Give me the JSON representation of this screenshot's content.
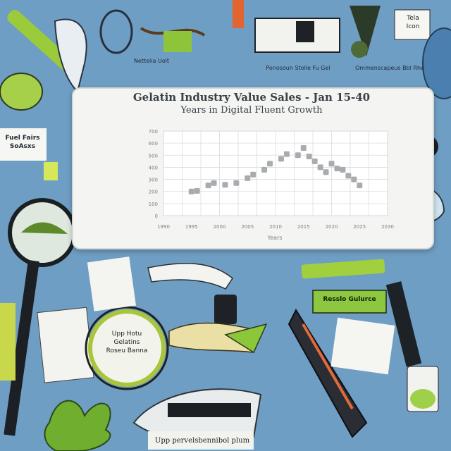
{
  "chart_data": {
    "type": "scatter",
    "title": "Gelatin Industry Value Sales - Jan 15-40",
    "subtitle": "Years in Digital Fluent Growth",
    "xlabel": "Years",
    "ylabel": "",
    "x_ticks": [
      "1990",
      "1995",
      "2000",
      "2005",
      "2010",
      "2015",
      "2020",
      "2025",
      "2030"
    ],
    "y_ticks": [
      0,
      100,
      200,
      300,
      400,
      500,
      600,
      700
    ],
    "xlim": [
      1990,
      2030
    ],
    "ylim": [
      0,
      700
    ],
    "points": [
      {
        "x": 1995,
        "y": 200
      },
      {
        "x": 1996,
        "y": 205
      },
      {
        "x": 1998,
        "y": 250
      },
      {
        "x": 1999,
        "y": 270
      },
      {
        "x": 2001,
        "y": 255
      },
      {
        "x": 2003,
        "y": 270
      },
      {
        "x": 2005,
        "y": 310
      },
      {
        "x": 2006,
        "y": 340
      },
      {
        "x": 2008,
        "y": 380
      },
      {
        "x": 2009,
        "y": 430
      },
      {
        "x": 2011,
        "y": 470
      },
      {
        "x": 2012,
        "y": 510
      },
      {
        "x": 2014,
        "y": 500
      },
      {
        "x": 2015,
        "y": 560
      },
      {
        "x": 2016,
        "y": 490
      },
      {
        "x": 2017,
        "y": 450
      },
      {
        "x": 2018,
        "y": 400
      },
      {
        "x": 2019,
        "y": 360
      },
      {
        "x": 2020,
        "y": 430
      },
      {
        "x": 2021,
        "y": 390
      },
      {
        "x": 2022,
        "y": 380
      },
      {
        "x": 2023,
        "y": 330
      },
      {
        "x": 2024,
        "y": 300
      },
      {
        "x": 2025,
        "y": 250
      }
    ],
    "grid": true
  },
  "corner_label": "Tela\nIcon",
  "side_label": "Fuel Fairs\nSoAsxs",
  "panel_caption": "Ponosoun Stolle Fu Gel",
  "footer_caption": "Upp pervelsbennibol plum",
  "lens_caption": "Upp Hotu\nGelatins\nRoseu Banna",
  "stick_caption": "Resslo Gulurce",
  "small_caption_1": "Nettelia Uolt",
  "small_caption_2": "Ommenscapeus Bbl Rhe"
}
